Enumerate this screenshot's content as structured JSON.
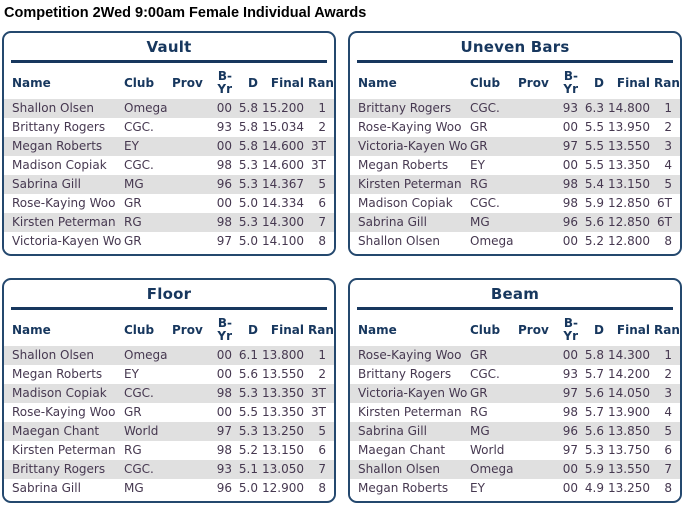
{
  "page_title": "Competition 2Wed 9:00am Female Individual Awards",
  "columns": [
    "Name",
    "Club",
    "Prov",
    "B-Yr",
    "D",
    "Final",
    "Rank"
  ],
  "colors": {
    "accent_navy": "#17375e",
    "card_border": "#24486e",
    "row_alt_gray": "#e0e0e0",
    "body_text": "#463850",
    "title_text": "#000000"
  },
  "events": [
    {
      "title": "Vault",
      "rows": [
        [
          "Shallon Olsen",
          "Omega",
          "",
          "00",
          "5.8",
          "15.200",
          "1"
        ],
        [
          "Brittany Rogers",
          "CGC.",
          "",
          "93",
          "5.8",
          "15.034",
          "2"
        ],
        [
          "Megan Roberts",
          "EY",
          "",
          "00",
          "5.8",
          "14.600",
          "3T"
        ],
        [
          "Madison Copiak",
          "CGC.",
          "",
          "98",
          "5.3",
          "14.600",
          "3T"
        ],
        [
          "Sabrina Gill",
          "MG",
          "",
          "96",
          "5.3",
          "14.367",
          "5"
        ],
        [
          "Rose-Kaying Woo",
          "GR",
          "",
          "00",
          "5.0",
          "14.334",
          "6"
        ],
        [
          "Kirsten Peterman",
          "RG",
          "",
          "98",
          "5.3",
          "14.300",
          "7"
        ],
        [
          "Victoria-Kayen Woo",
          "GR",
          "",
          "97",
          "5.0",
          "14.100",
          "8"
        ]
      ]
    },
    {
      "title": "Uneven Bars",
      "rows": [
        [
          "Brittany Rogers",
          "CGC.",
          "",
          "93",
          "6.3",
          "14.800",
          "1"
        ],
        [
          "Rose-Kaying Woo",
          "GR",
          "",
          "00",
          "5.5",
          "13.950",
          "2"
        ],
        [
          "Victoria-Kayen Woo",
          "GR",
          "",
          "97",
          "5.5",
          "13.550",
          "3"
        ],
        [
          "Megan Roberts",
          "EY",
          "",
          "00",
          "5.5",
          "13.350",
          "4"
        ],
        [
          "Kirsten Peterman",
          "RG",
          "",
          "98",
          "5.4",
          "13.150",
          "5"
        ],
        [
          "Madison Copiak",
          "CGC.",
          "",
          "98",
          "5.9",
          "12.850",
          "6T"
        ],
        [
          "Sabrina Gill",
          "MG",
          "",
          "96",
          "5.6",
          "12.850",
          "6T"
        ],
        [
          "Shallon Olsen",
          "Omega",
          "",
          "00",
          "5.2",
          "12.800",
          "8"
        ]
      ]
    },
    {
      "title": "Floor",
      "rows": [
        [
          "Shallon Olsen",
          "Omega",
          "",
          "00",
          "6.1",
          "13.800",
          "1"
        ],
        [
          "Megan Roberts",
          "EY",
          "",
          "00",
          "5.6",
          "13.550",
          "2"
        ],
        [
          "Madison Copiak",
          "CGC.",
          "",
          "98",
          "5.3",
          "13.350",
          "3T"
        ],
        [
          "Rose-Kaying Woo",
          "GR",
          "",
          "00",
          "5.5",
          "13.350",
          "3T"
        ],
        [
          "Maegan Chant",
          "World",
          "",
          "97",
          "5.3",
          "13.250",
          "5"
        ],
        [
          "Kirsten Peterman",
          "RG",
          "",
          "98",
          "5.2",
          "13.150",
          "6"
        ],
        [
          "Brittany Rogers",
          "CGC.",
          "",
          "93",
          "5.1",
          "13.050",
          "7"
        ],
        [
          "Sabrina Gill",
          "MG",
          "",
          "96",
          "5.0",
          "12.900",
          "8"
        ]
      ]
    },
    {
      "title": "Beam",
      "rows": [
        [
          "Rose-Kaying Woo",
          "GR",
          "",
          "00",
          "5.8",
          "14.300",
          "1"
        ],
        [
          "Brittany Rogers",
          "CGC.",
          "",
          "93",
          "5.7",
          "14.200",
          "2"
        ],
        [
          "Victoria-Kayen Woo",
          "GR",
          "",
          "97",
          "5.6",
          "14.050",
          "3"
        ],
        [
          "Kirsten Peterman",
          "RG",
          "",
          "98",
          "5.7",
          "13.900",
          "4"
        ],
        [
          "Sabrina Gill",
          "MG",
          "",
          "96",
          "5.6",
          "13.850",
          "5"
        ],
        [
          "Maegan Chant",
          "World",
          "",
          "97",
          "5.3",
          "13.750",
          "6"
        ],
        [
          "Shallon Olsen",
          "Omega",
          "",
          "00",
          "5.9",
          "13.550",
          "7"
        ],
        [
          "Megan Roberts",
          "EY",
          "",
          "00",
          "4.9",
          "13.250",
          "8"
        ]
      ]
    }
  ]
}
